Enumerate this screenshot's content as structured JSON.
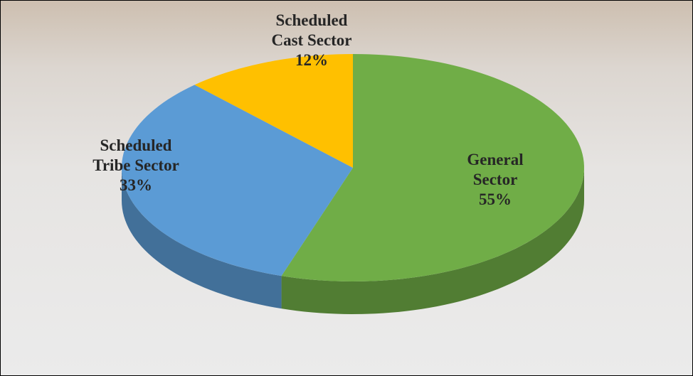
{
  "chart_data": {
    "type": "pie",
    "categories": [
      "General Sector",
      "Scheduled Tribe Sector",
      "Scheduled Cast Sector"
    ],
    "values": [
      55,
      33,
      12
    ],
    "value_labels": [
      "55%",
      "33%",
      "12%"
    ],
    "colors": [
      "#70ad47",
      "#5b9bd5",
      "#ffc000"
    ]
  }
}
